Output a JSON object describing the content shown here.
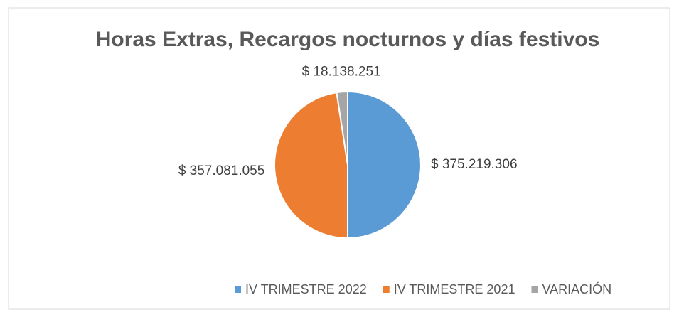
{
  "chart_data": {
    "type": "pie",
    "title": "Horas Extras, Recargos nocturnos y días festivos",
    "categories": [
      "IV TRIMESTRE 2022",
      "IV TRIMESTRE 2021",
      "VARIACIÓN"
    ],
    "values": [
      375219306,
      357081055,
      18138251
    ],
    "value_labels": [
      "$ 375.219.306",
      "$ 357.081.055",
      "$ 18.138.251"
    ],
    "colors": [
      "#5b9bd5",
      "#ed7d31",
      "#a5a5a5"
    ],
    "legend": "bottom"
  }
}
